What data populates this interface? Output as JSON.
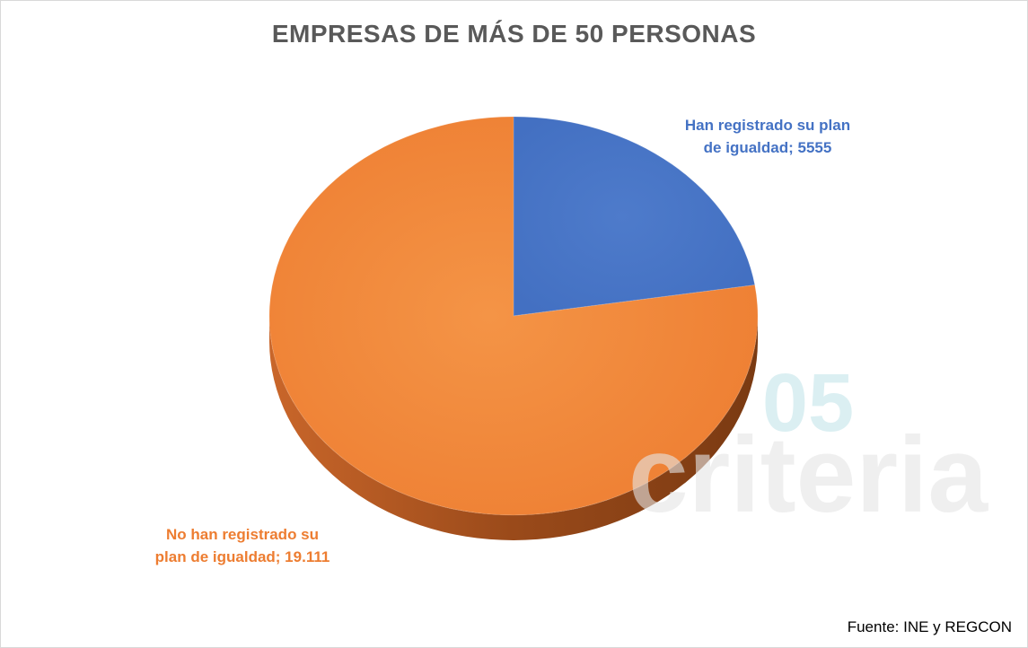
{
  "chart_data": {
    "type": "pie",
    "title": "EMPRESAS DE MÁS DE 50 PERSONAS",
    "slices": [
      {
        "label": "Han registrado su plan de igualdad",
        "label_lines": [
          "Han registrado su plan",
          "de igualdad; 5555"
        ],
        "value": 5555,
        "color": "#4472c4",
        "side_color": "#2f5597"
      },
      {
        "label": "No han registrado su plan de igualdad",
        "label_lines": [
          "No han registrado su",
          "plan de igualdad; 19.111"
        ],
        "value": 19111,
        "color": "#ed7d31",
        "side_color": "#a0501e"
      }
    ]
  },
  "source": "Fuente: INE y REGCON",
  "watermark": {
    "text": "criteria",
    "number": "05"
  }
}
